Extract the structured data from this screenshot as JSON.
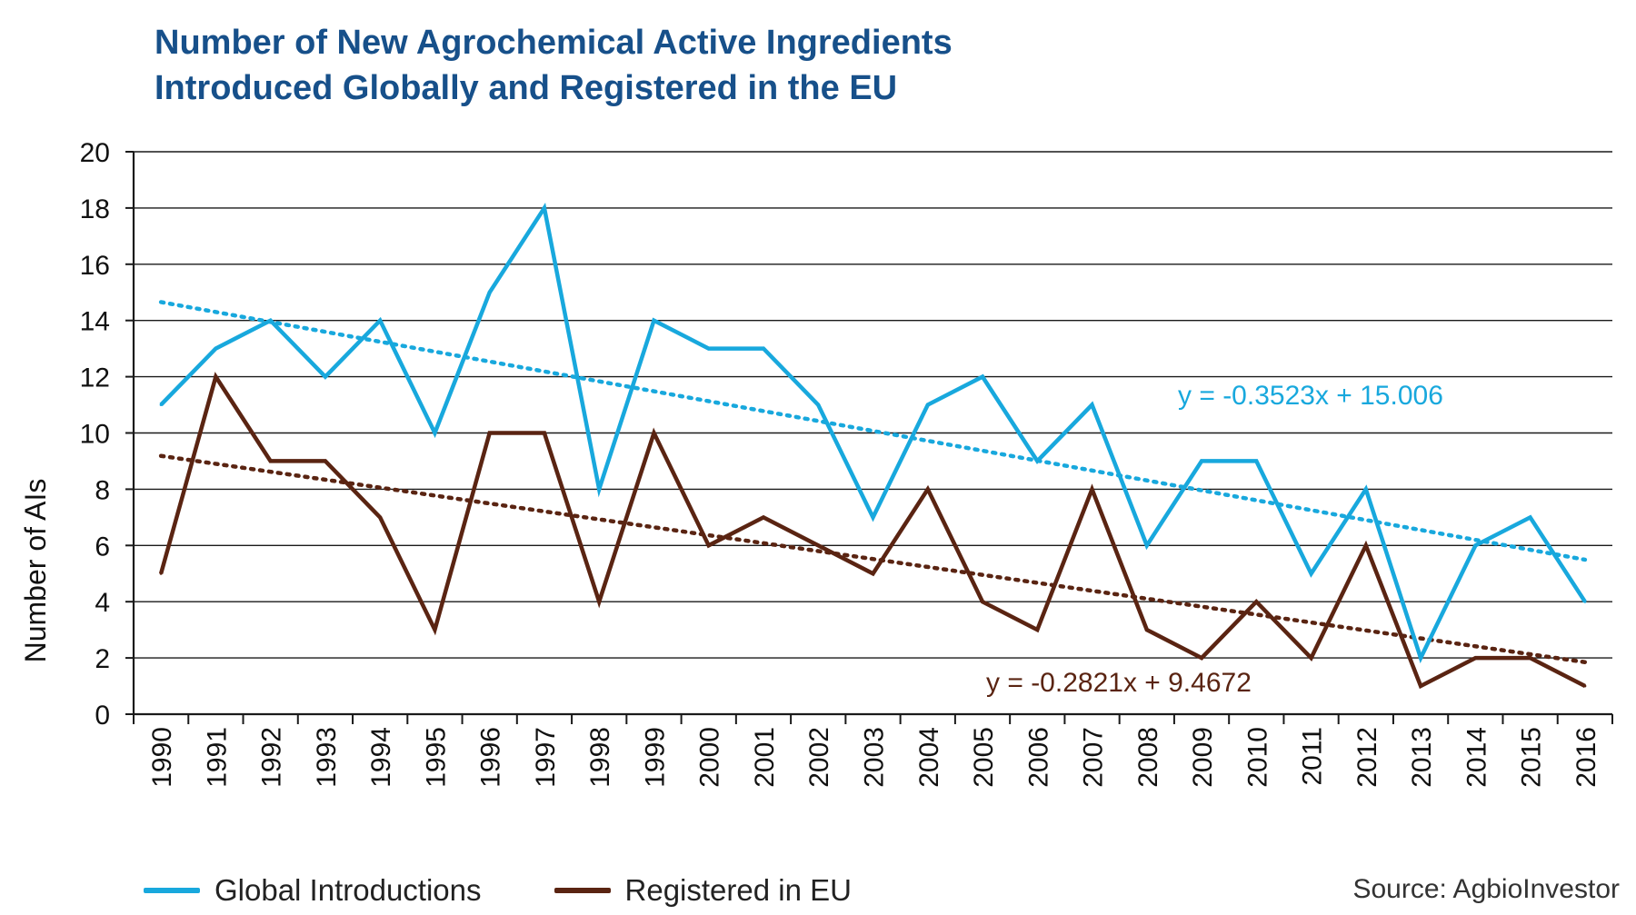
{
  "chart_data": {
    "type": "line",
    "title_lines": [
      "Number of New Agrochemical Active Ingredients",
      "Introduced Globally and Registered in the EU"
    ],
    "xlabel": "",
    "ylabel": "Number of AIs",
    "ylim": [
      0,
      20
    ],
    "yticks": [
      "0",
      "2",
      "4",
      "6",
      "8",
      "10",
      "12",
      "14",
      "16",
      "18",
      "20"
    ],
    "categories": [
      "1990",
      "1991",
      "1992",
      "1993",
      "1994",
      "1995",
      "1996",
      "1997",
      "1998",
      "1999",
      "2000",
      "2001",
      "2002",
      "2003",
      "2004",
      "2005",
      "2006",
      "2007",
      "2008",
      "2009",
      "2010",
      "2011",
      "2012",
      "2013",
      "2014",
      "2015",
      "2016"
    ],
    "series": [
      {
        "name": "Global Introductions",
        "color": "#18a8dd",
        "values": [
          11,
          13,
          14,
          12,
          14,
          10,
          15,
          18,
          8,
          14,
          13,
          13,
          11,
          7,
          11,
          12,
          9,
          11,
          6,
          9,
          9,
          5,
          8,
          2,
          6,
          7,
          4
        ]
      },
      {
        "name": "Registered in EU",
        "color": "#5a2412",
        "values": [
          5,
          12,
          9,
          9,
          7,
          3,
          10,
          10,
          4,
          10,
          6,
          7,
          6,
          5,
          8,
          4,
          3,
          8,
          3,
          2,
          4,
          2,
          6,
          1,
          2,
          2,
          1
        ]
      }
    ],
    "trendlines": [
      {
        "label": "y = -0.3523x + 15.006",
        "slope": -0.3523,
        "intercept": 15.006,
        "color": "#18a8dd",
        "style": "dotted"
      },
      {
        "label": "y = -0.2821x + 9.4672",
        "slope": -0.2821,
        "intercept": 9.4672,
        "color": "#5a2412",
        "style": "dotted"
      }
    ],
    "grid": true,
    "legend_position": "bottom-left"
  },
  "source": "Source: AgbioInvestor"
}
